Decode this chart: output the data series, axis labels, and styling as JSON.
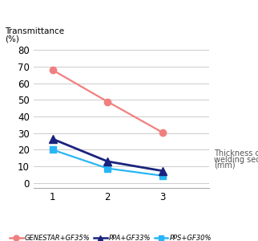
{
  "title_line1": "Transmittance",
  "title_line2": "(%)",
  "xlabel_line1": "Thickness of",
  "xlabel_line2": "welding section",
  "xlabel_line3": "(mm)",
  "xticks": [
    1,
    2,
    3
  ],
  "yticks": [
    0,
    10,
    20,
    30,
    40,
    50,
    60,
    70,
    80
  ],
  "ylim": [
    -3,
    87
  ],
  "xlim": [
    0.65,
    3.85
  ],
  "series": [
    {
      "label": "GENESTAR+GF35%",
      "values": [
        68,
        49,
        30.5
      ],
      "color": "#F08080",
      "marker": "o",
      "markersize": 6,
      "linewidth": 1.6,
      "zorder": 2
    },
    {
      "label": "PPA+GF33%",
      "values": [
        26.5,
        13,
        7.3
      ],
      "color": "#1a237e",
      "marker": "^",
      "markersize": 7,
      "linewidth": 2.0,
      "zorder": 3
    },
    {
      "label": "PPS+GF30%",
      "values": [
        20,
        8.8,
        4.4
      ],
      "color": "#29b6f6",
      "marker": "s",
      "markersize": 6,
      "linewidth": 1.6,
      "zorder": 2
    }
  ],
  "background_color": "#ffffff",
  "grid_color": "#cccccc",
  "tick_fontsize": 8.5,
  "axis_label_fontsize": 7.5,
  "xlabel_fontsize": 7.0
}
